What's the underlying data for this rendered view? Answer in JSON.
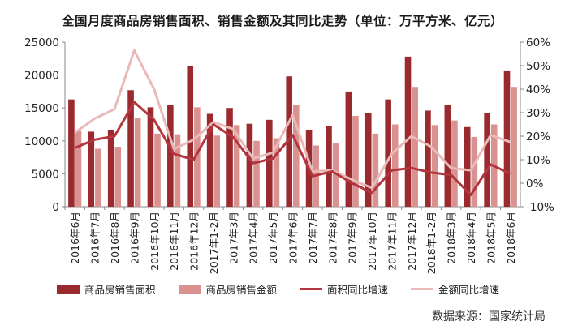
{
  "chart_data": {
    "type": "bar",
    "title": "全国月度商品房销售面积、销售金额及其同比走势（单位：万平方米、亿元）",
    "categories": [
      "2016年6月",
      "2016年7月",
      "2016年8月",
      "2016年9月",
      "2016年10月",
      "2016年11月",
      "2016年12月",
      "2017年1-2月",
      "2017年3月",
      "2017年4月",
      "2017年5月",
      "2017年6月",
      "2017年7月",
      "2017年8月",
      "2017年9月",
      "2017年10月",
      "2017年11月",
      "2017年12月",
      "2018年1-2月",
      "2018年3月",
      "2018年4月",
      "2018年5月",
      "2018年6月"
    ],
    "series": [
      {
        "name": "商品房销售面积",
        "kind": "bar",
        "axis": "left",
        "color": "#9b2a2f",
        "values": [
          16300,
          11400,
          11700,
          17700,
          15100,
          15500,
          21400,
          14100,
          15000,
          12600,
          13200,
          19800,
          11700,
          12200,
          17500,
          14200,
          16300,
          22800,
          14600,
          15500,
          12100,
          14200,
          20700
        ]
      },
      {
        "name": "商品房销售金额",
        "kind": "bar",
        "axis": "left",
        "color": "#d9928f",
        "values": [
          11600,
          8800,
          9100,
          13500,
          11100,
          11000,
          15100,
          10800,
          12400,
          10000,
          10400,
          15500,
          9300,
          9600,
          13800,
          11100,
          12500,
          18200,
          12400,
          13100,
          10600,
          12500,
          18200
        ]
      },
      {
        "name": "面积同比增速",
        "kind": "line",
        "axis": "right",
        "color": "#b3353d",
        "values": [
          15,
          18.5,
          20,
          34.5,
          27,
          12.5,
          10,
          25,
          19.5,
          8.5,
          10.5,
          20.5,
          3,
          5,
          0,
          -4,
          5.5,
          6.5,
          4.5,
          3.5,
          -5,
          8,
          4
        ]
      },
      {
        "name": "金额同比增速",
        "kind": "line",
        "axis": "right",
        "color": "#e9b9b8",
        "values": [
          21.5,
          27.5,
          31.5,
          56.5,
          40,
          14.5,
          18.5,
          26,
          23,
          10.5,
          13,
          29,
          5,
          5.5,
          1.5,
          -2,
          12.5,
          20,
          15.5,
          6.5,
          5.5,
          20.5,
          17.5
        ]
      }
    ],
    "y_left": {
      "min": 0,
      "max": 25000,
      "ticks": [
        "0",
        "5000",
        "10000",
        "15000",
        "20000",
        "25000"
      ]
    },
    "y_right": {
      "min": -10,
      "max": 60,
      "ticks": [
        "-10%",
        "0%",
        "10%",
        "20%",
        "30%",
        "40%",
        "50%",
        "60%"
      ]
    },
    "grid": false,
    "legend_position": "bottom"
  },
  "source_note": "数据来源：国家统计局"
}
